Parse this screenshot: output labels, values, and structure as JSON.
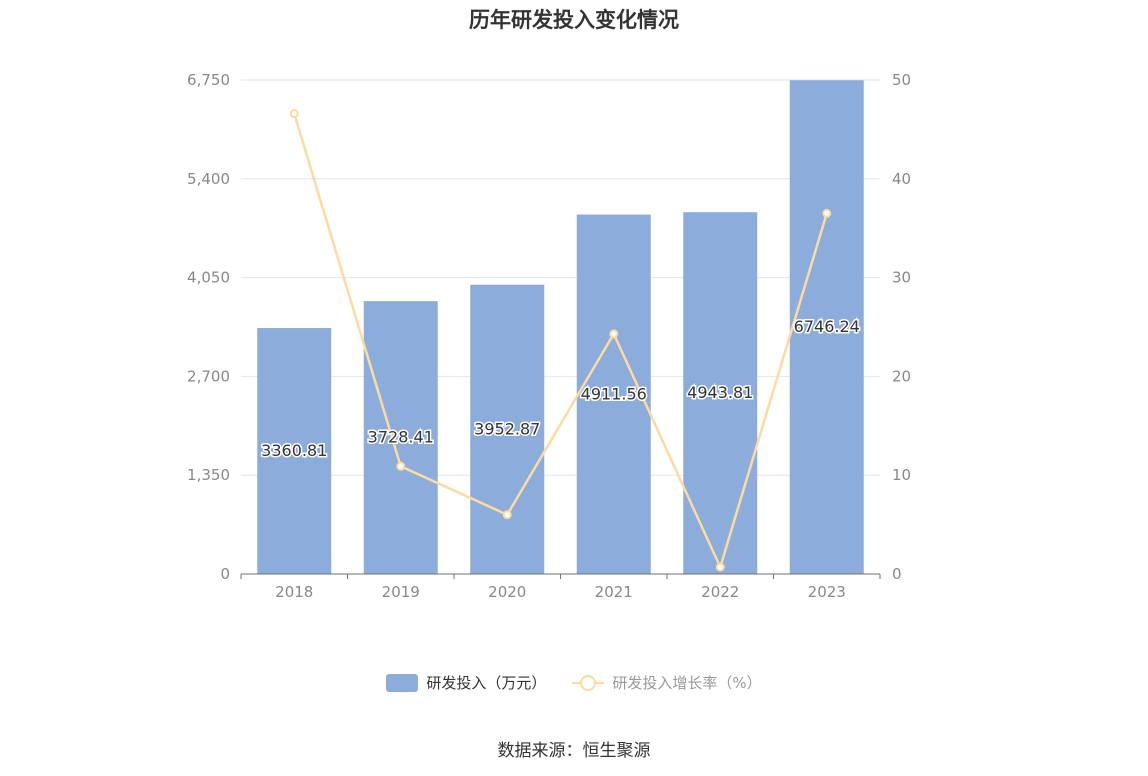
{
  "colors": {
    "bar": "#8CACDB",
    "line": "#FDDBA0",
    "axis_text": "#888888",
    "grid": "#E0E6F1",
    "axis_line": "#6E7079"
  },
  "chart_data": {
    "type": "bar",
    "title": "历年研发投入变化情况",
    "categories": [
      "2018",
      "2019",
      "2020",
      "2021",
      "2022",
      "2023"
    ],
    "y_left": {
      "ticks": [
        "0",
        "1,350",
        "2,700",
        "4,050",
        "5,400",
        "6,750"
      ],
      "range": [
        0,
        6750
      ]
    },
    "y_right": {
      "ticks": [
        "0",
        "10",
        "20",
        "30",
        "40",
        "50"
      ],
      "range": [
        0,
        50
      ]
    },
    "grid": true,
    "legend_position": "bottom",
    "series": [
      {
        "name": "研发投入（万元）",
        "type": "bar",
        "axis": "left",
        "values": [
          3360.81,
          3728.41,
          3952.87,
          4911.56,
          4943.81,
          6746.24
        ],
        "labels": [
          "3360.81",
          "3728.41",
          "3952.87",
          "4911.56",
          "4943.81",
          "6746.24"
        ]
      },
      {
        "name": "研发投入增长率（%）",
        "type": "line",
        "axis": "right",
        "values": [
          46.6,
          10.9,
          6.0,
          24.3,
          0.7,
          36.5
        ]
      }
    ]
  },
  "source_note": "数据来源：恒生聚源"
}
